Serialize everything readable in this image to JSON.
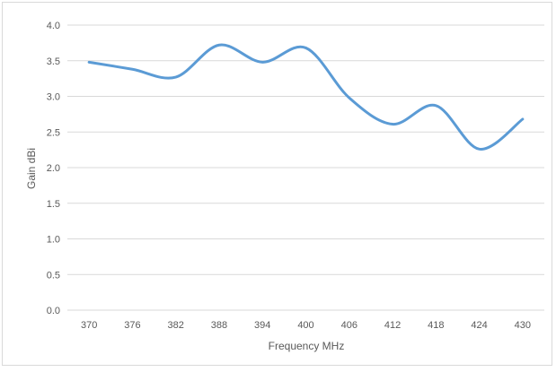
{
  "chart_data": {
    "type": "line",
    "title": "",
    "xlabel": "Frequency MHz",
    "ylabel": "Gain dBi",
    "categories": [
      "370",
      "376",
      "382",
      "388",
      "394",
      "400",
      "406",
      "412",
      "418",
      "424",
      "430"
    ],
    "y_ticks": [
      "0.0",
      "0.5",
      "1.0",
      "1.5",
      "2.0",
      "2.5",
      "3.0",
      "3.5",
      "4.0"
    ],
    "ylim": [
      0,
      4
    ],
    "grid": true,
    "smooth": true,
    "series": [
      {
        "color": "#5B9BD5",
        "values": [
          3.48,
          3.38,
          3.27,
          3.72,
          3.48,
          3.68,
          2.98,
          2.61,
          2.87,
          2.26,
          2.68
        ]
      }
    ]
  }
}
